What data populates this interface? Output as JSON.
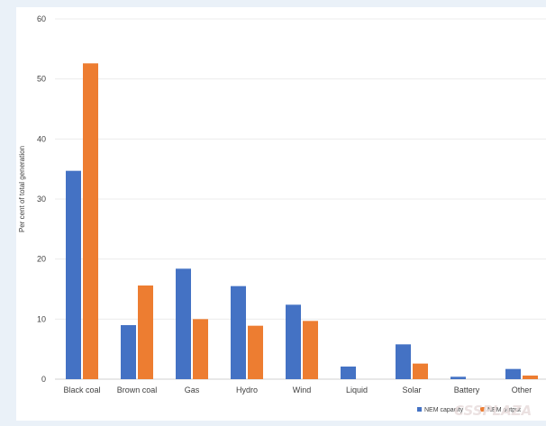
{
  "chart_data": {
    "type": "bar",
    "title": "",
    "xlabel": "",
    "ylabel": "Per cent of total generation",
    "ylim": [
      0,
      60
    ],
    "y_ticks": [
      0,
      10,
      20,
      30,
      40,
      50,
      60
    ],
    "grid": true,
    "legend_position": "bottom-right",
    "categories": [
      "Black coal",
      "Brown coal",
      "Gas",
      "Hydro",
      "Wind",
      "Liquid",
      "Solar",
      "Battery",
      "Other"
    ],
    "series": [
      {
        "name": "NEM capacity",
        "color": "#4472c4",
        "values": [
          34.7,
          9.0,
          18.4,
          15.5,
          12.4,
          2.1,
          5.8,
          0.4,
          1.7
        ]
      },
      {
        "name": "NEM output",
        "color": "#ed7d31",
        "values": [
          52.6,
          15.6,
          10.0,
          8.9,
          9.7,
          0.0,
          2.6,
          0.0,
          0.6
        ]
      }
    ]
  },
  "watermark": "CSSPLAZA"
}
